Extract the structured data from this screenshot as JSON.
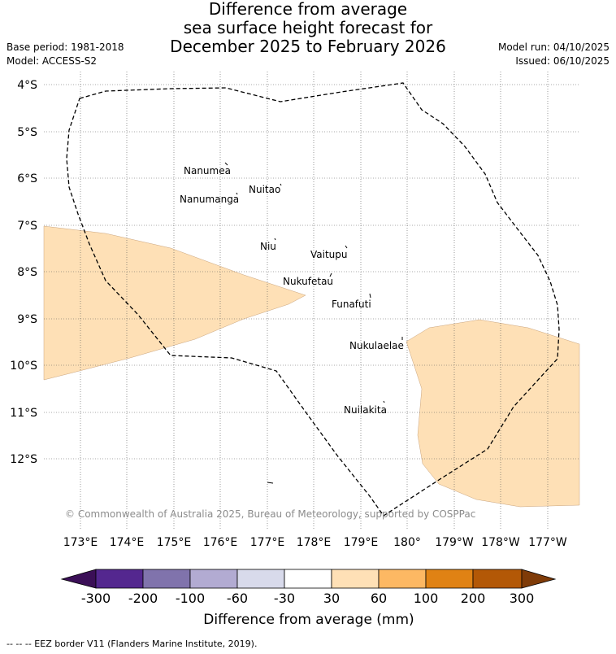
{
  "title": {
    "line1": "Difference from average",
    "line2": "sea surface height forecast for",
    "line3": "December 2025 to February 2026"
  },
  "meta_left": {
    "base_period": "Base period: 1981-2018",
    "model": "Model: ACCESS-S2"
  },
  "meta_right": {
    "model_run": "Model run: 04/10/2025",
    "issued": "Issued: 06/10/2025"
  },
  "map": {
    "lat_labels": [
      "4°S",
      "5°S",
      "6°S",
      "7°S",
      "8°S",
      "9°S",
      "10°S",
      "11°S",
      "12°S"
    ],
    "lon_labels": [
      "173°E",
      "174°E",
      "175°E",
      "176°E",
      "177°E",
      "178°E",
      "179°E",
      "180°",
      "179°W",
      "178°W",
      "177°W"
    ],
    "places": [
      {
        "name": "Nanumea"
      },
      {
        "name": "Nuitao"
      },
      {
        "name": "Nanumanga"
      },
      {
        "name": "Niu"
      },
      {
        "name": "Vaitupu"
      },
      {
        "name": "Nukufetau"
      },
      {
        "name": "Funafuti"
      },
      {
        "name": "Nukulaelae"
      },
      {
        "name": "Nuilakita"
      }
    ],
    "credit": "© Commonwealth of Australia 2025, Bureau of Meteorology, supported by COSPPac"
  },
  "colorbar": {
    "label": "Difference from average (mm)",
    "ticks": [
      "-300",
      "-200",
      "-100",
      "-60",
      "-30",
      "30",
      "60",
      "100",
      "200",
      "300"
    ],
    "colors": [
      "#3b0f57",
      "#54278f",
      "#8073ac",
      "#b2abd2",
      "#d8daeb",
      "#ffffff",
      "#fee0b6",
      "#fdb863",
      "#e08214",
      "#b35806",
      "#7f3b08"
    ]
  },
  "footer": "--  --  -- EEZ border V11 (Flanders Marine Institute, 2019)."
}
